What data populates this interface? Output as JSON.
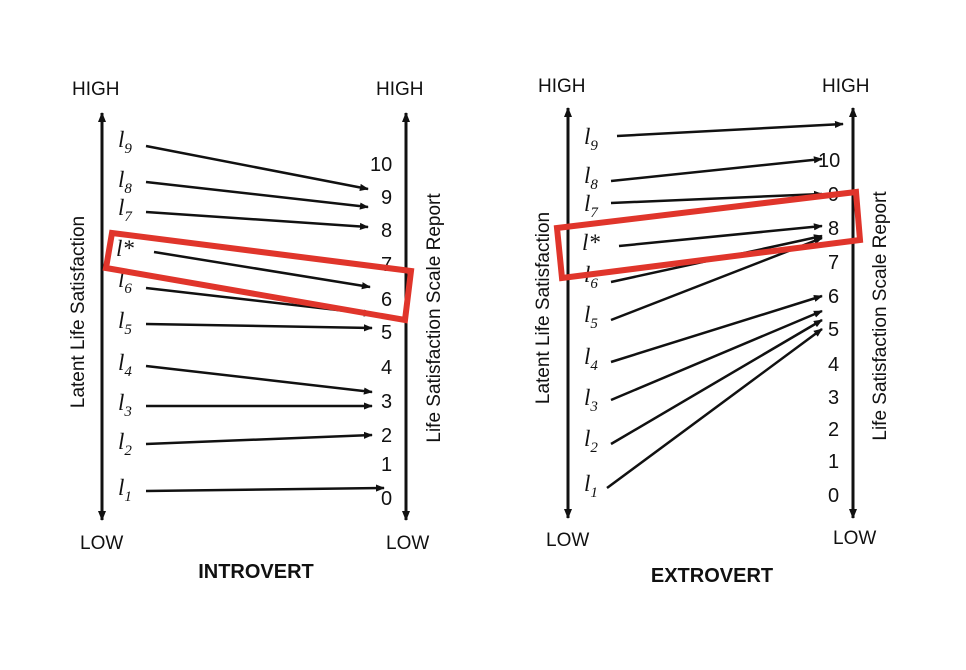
{
  "colors": {
    "line": "#111111",
    "highlight": "#e0352b"
  },
  "panels": [
    {
      "title": "INTROVERT",
      "left_axis": {
        "label": "Latent Life Satisfaction",
        "high": "HIGH",
        "low": "LOW"
      },
      "right_axis": {
        "label": "Life Satisfaction Scale Report",
        "high": "HIGH",
        "low": "LOW"
      },
      "levels": [
        {
          "base": "l",
          "sub": "9"
        },
        {
          "base": "l",
          "sub": "8"
        },
        {
          "base": "l",
          "sub": "7"
        },
        {
          "base": "l*",
          "sub": ""
        },
        {
          "base": "l",
          "sub": "6"
        },
        {
          "base": "l",
          "sub": "5"
        },
        {
          "base": "l",
          "sub": "4"
        },
        {
          "base": "l",
          "sub": "3"
        },
        {
          "base": "l",
          "sub": "2"
        },
        {
          "base": "l",
          "sub": "1"
        }
      ],
      "scale": [
        "10",
        "9",
        "8",
        "7",
        "6",
        "5",
        "4",
        "3",
        "2",
        "1",
        "0"
      ],
      "mapping": [
        "9",
        "9",
        "8",
        "6",
        "5",
        "5",
        "3",
        "3",
        "2",
        "0"
      ],
      "highlighted": "l*"
    },
    {
      "title": "EXTROVERT",
      "left_axis": {
        "label": "Latent Life Satisfaction",
        "high": "HIGH",
        "low": "LOW"
      },
      "right_axis": {
        "label": "Life Satisfaction Scale Report",
        "high": "HIGH",
        "low": "LOW"
      },
      "levels": [
        {
          "base": "l",
          "sub": "9"
        },
        {
          "base": "l",
          "sub": "8"
        },
        {
          "base": "l",
          "sub": "7"
        },
        {
          "base": "l*",
          "sub": ""
        },
        {
          "base": "l",
          "sub": "6"
        },
        {
          "base": "l",
          "sub": "5"
        },
        {
          "base": "l",
          "sub": "4"
        },
        {
          "base": "l",
          "sub": "3"
        },
        {
          "base": "l",
          "sub": "2"
        },
        {
          "base": "l",
          "sub": "1"
        }
      ],
      "scale": [
        "10",
        "9",
        "8",
        "7",
        "6",
        "5",
        "4",
        "3",
        "2",
        "1",
        "0"
      ],
      "mapping": [
        "HIGH",
        "10",
        "9",
        "8",
        "8",
        "8",
        "6",
        "5",
        "5",
        "5"
      ],
      "highlighted": "l*"
    }
  ]
}
